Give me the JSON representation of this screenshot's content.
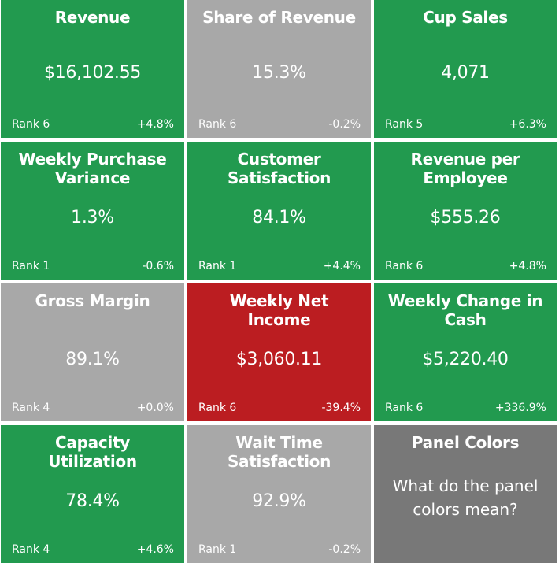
{
  "colors": {
    "green": "#229a4f",
    "gray": "#a8a8a8",
    "red": "#bb1d21",
    "dark_gray": "#787878",
    "text": "#ffffff"
  },
  "tiles": [
    {
      "title": "Revenue",
      "value": "$16,102.55",
      "rank": "Rank 6",
      "change": "+4.8%",
      "color": "green"
    },
    {
      "title": "Share of Revenue",
      "value": "15.3%",
      "rank": "Rank 6",
      "change": "-0.2%",
      "color": "gray"
    },
    {
      "title": "Cup Sales",
      "value": "4,071",
      "rank": "Rank 5",
      "change": "+6.3%",
      "color": "green"
    },
    {
      "title": "Weekly Purchase\nVariance",
      "value": "1.3%",
      "rank": "Rank 1",
      "change": "-0.6%",
      "color": "green"
    },
    {
      "title": "Customer\nSatisfaction",
      "value": "84.1%",
      "rank": "Rank 1",
      "change": "+4.4%",
      "color": "green"
    },
    {
      "title": "Revenue per\nEmployee",
      "value": "$555.26",
      "rank": "Rank 6",
      "change": "+4.8%",
      "color": "green"
    },
    {
      "title": "Gross Margin",
      "value": "89.1%",
      "rank": "Rank 4",
      "change": "+0.0%",
      "color": "gray"
    },
    {
      "title": "Weekly Net\nIncome",
      "value": "$3,060.11",
      "rank": "Rank 6",
      "change": "-39.4%",
      "color": "red"
    },
    {
      "title": "Weekly Change in\nCash",
      "value": "$5,220.40",
      "rank": "Rank 6",
      "change": "+336.9%",
      "color": "green"
    },
    {
      "title": "Capacity\nUtilization",
      "value": "78.4%",
      "rank": "Rank 4",
      "change": "+4.6%",
      "color": "green"
    },
    {
      "title": "Wait Time\nSatisfaction",
      "value": "92.9%",
      "rank": "Rank 1",
      "change": "-0.2%",
      "color": "gray"
    }
  ],
  "legend_tile": {
    "title": "Panel Colors",
    "question": "What do the panel\ncolors mean?",
    "color": "dark_gray"
  }
}
